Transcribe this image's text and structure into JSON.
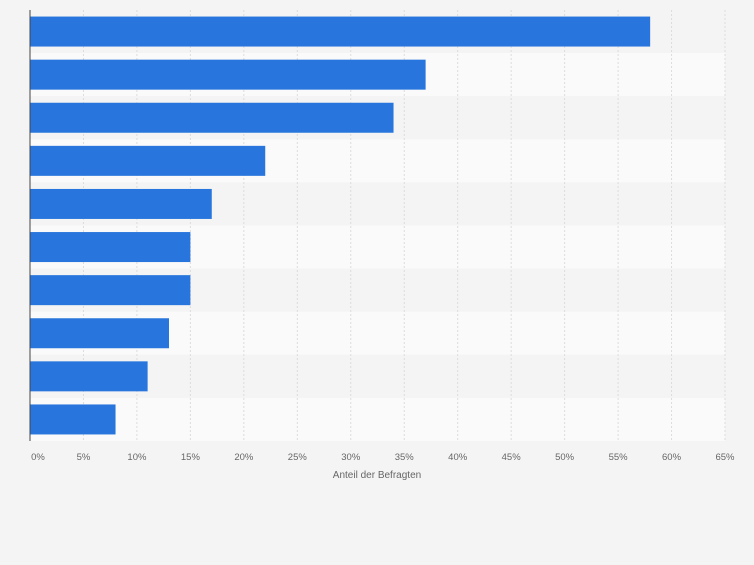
{
  "chart_data": {
    "type": "bar",
    "orientation": "horizontal",
    "title": "",
    "xlabel": "Anteil der Befragten",
    "ylabel": "",
    "categories": [
      "",
      "",
      "",
      "",
      "",
      "",
      "",
      "",
      "",
      ""
    ],
    "values": [
      58,
      37,
      34,
      22,
      17,
      15,
      15,
      13,
      11,
      8
    ],
    "xlim": [
      0,
      65
    ],
    "ticks": [
      0,
      5,
      10,
      15,
      20,
      25,
      30,
      35,
      40,
      45,
      50,
      55,
      60,
      65
    ],
    "tick_labels": [
      "0%",
      "5%",
      "10%",
      "15%",
      "20%",
      "25%",
      "30%",
      "35%",
      "40%",
      "45%",
      "50%",
      "55%",
      "60%",
      "65%"
    ],
    "grid": true,
    "colors": {
      "bar": "#2876dd",
      "background": "#f4f4f4",
      "band_light": "#fafafa",
      "band_dark": "#f4f4f4",
      "grid": "#dcdcdc",
      "axis": "#444444",
      "tick_text": "#666666"
    }
  }
}
